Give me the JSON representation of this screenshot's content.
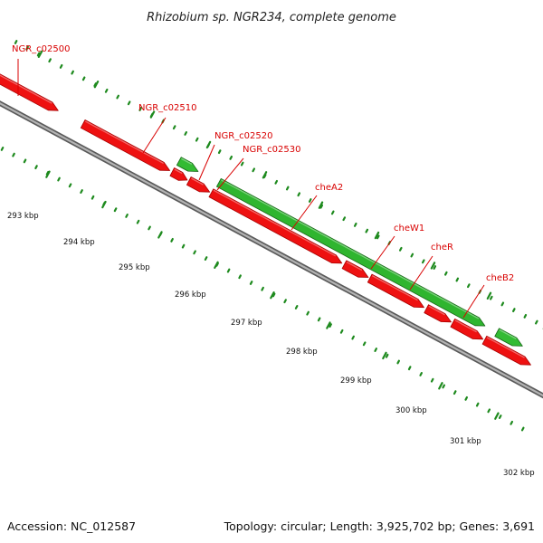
{
  "title": "Rhizobium sp. NGR234, complete genome",
  "footer": {
    "accession": "Accession: NC_012587",
    "summary": "Topology: circular; Length: 3,925,702 bp; Genes: 3,691"
  },
  "colors": {
    "gene_label": "#d80000",
    "forward_gene": "#ee1111",
    "reverse_gene": "#33bb33",
    "tick": "#1e8a1e",
    "backbone": "#888888"
  },
  "scale_ticks": [
    {
      "label": "293 kbp"
    },
    {
      "label": "294 kbp"
    },
    {
      "label": "295 kbp"
    },
    {
      "label": "296 kbp"
    },
    {
      "label": "297 kbp"
    },
    {
      "label": "298 kbp"
    },
    {
      "label": "299 kbp"
    },
    {
      "label": "300 kbp"
    },
    {
      "label": "301 kbp"
    },
    {
      "label": "302 kbp"
    }
  ],
  "gene_labels": [
    "NGR_c02500",
    "NGR_c02510",
    "NGR_c02520",
    "NGR_c02530",
    "cheA2",
    "cheW1",
    "cheR",
    "cheB2"
  ]
}
